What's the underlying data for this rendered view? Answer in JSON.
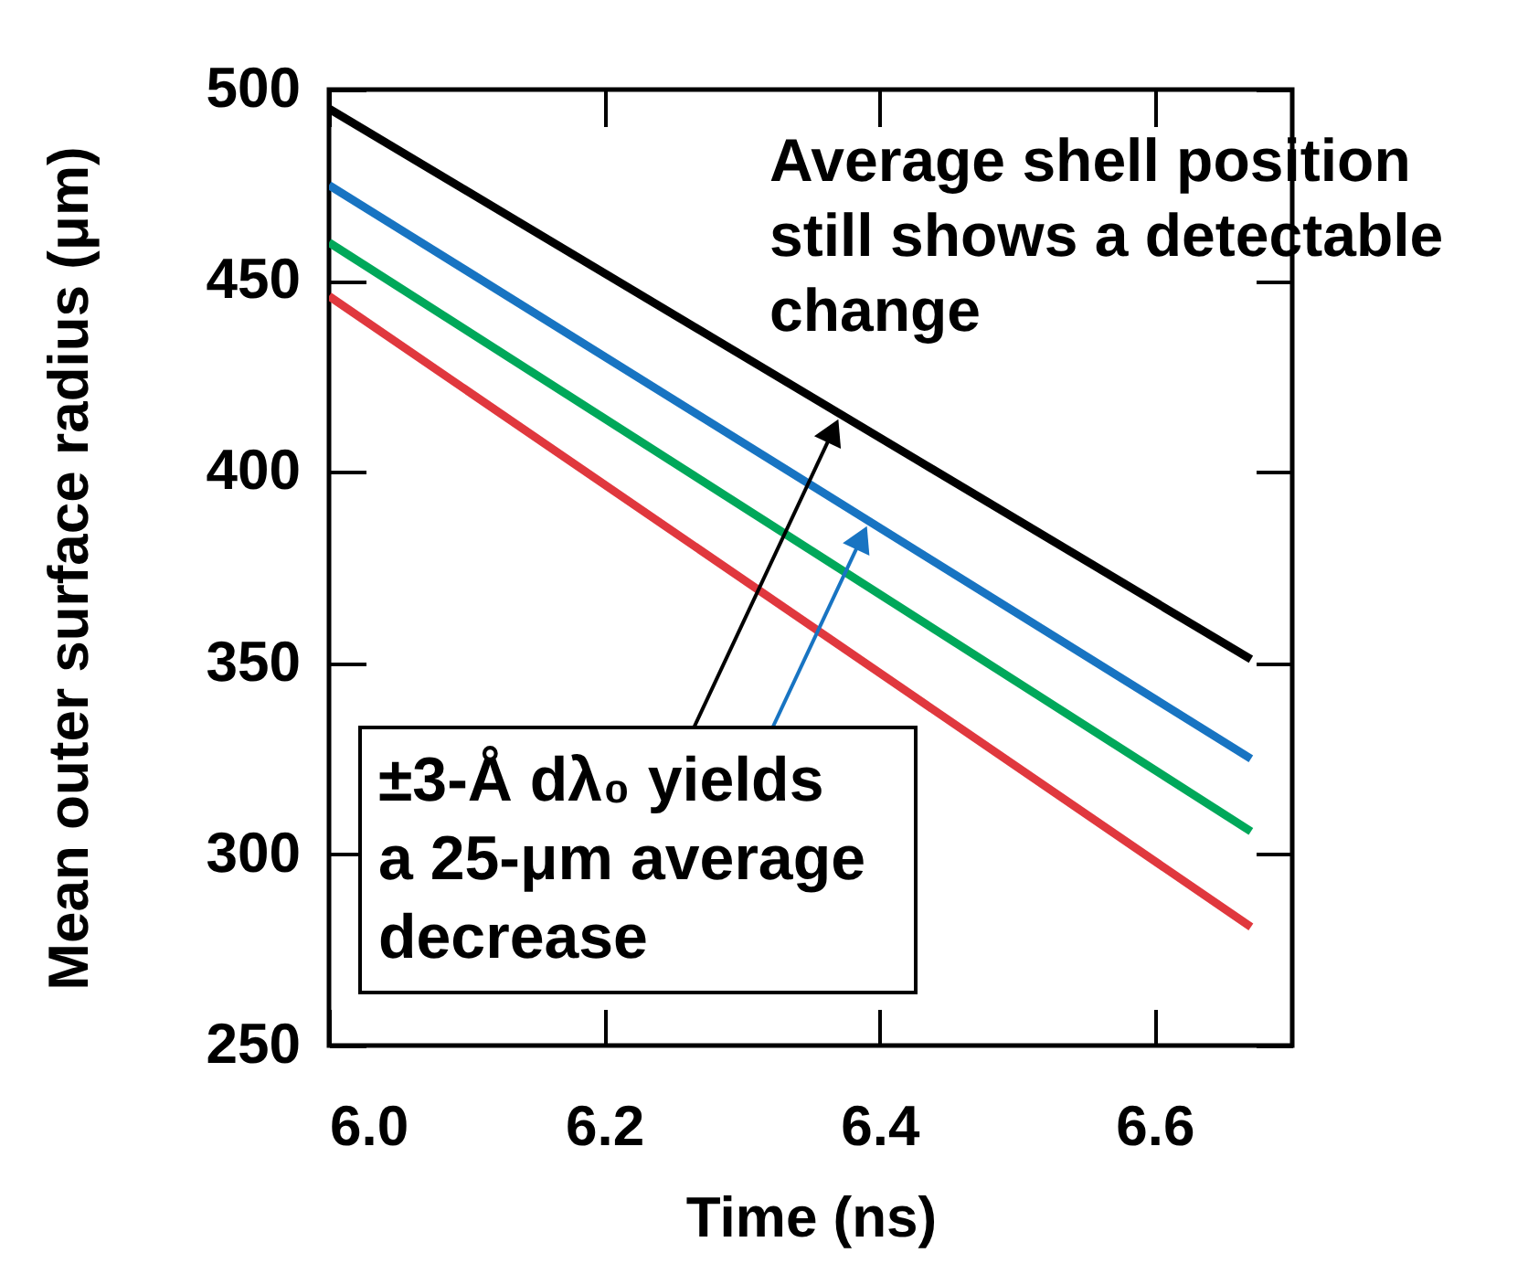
{
  "chart_data": {
    "type": "line",
    "xlabel": "Time (ns)",
    "ylabel": "Mean outer surface radius (μm)",
    "x": [
      6.0,
      6.67
    ],
    "series": [
      {
        "color": "#000000",
        "values": [
          495,
          351
        ]
      },
      {
        "color": "#1874c2",
        "values": [
          475,
          325
        ]
      },
      {
        "color": "#00a85a",
        "values": [
          460,
          306
        ]
      },
      {
        "color": "#e0383e",
        "values": [
          446,
          281
        ]
      }
    ],
    "xlim": [
      6.0,
      6.7
    ],
    "xticks": [
      {
        "value": 6.0,
        "label": "6.0"
      },
      {
        "value": 6.2,
        "label": "6.2"
      },
      {
        "value": 6.4,
        "label": "6.4"
      },
      {
        "value": 6.6,
        "label": "6.6"
      }
    ],
    "ylim": [
      250,
      500
    ],
    "yticks": [
      250,
      300,
      350,
      400,
      450,
      500
    ],
    "grid": false,
    "annotations": [
      "Average shell position\nstill shows a detectable\nchange",
      "±3-Å dλ₀ yields\na 25-μm average\ndecrease"
    ]
  }
}
